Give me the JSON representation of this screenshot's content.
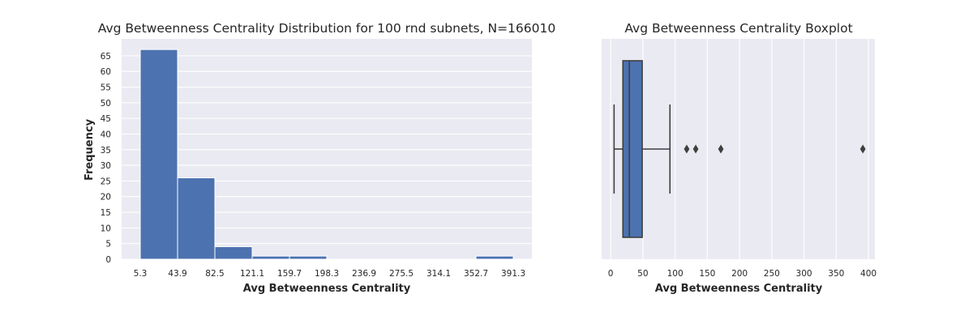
{
  "chart_data": [
    {
      "type": "bar",
      "title": "Avg Betweenness Centrality Distribution for 100 rnd subnets, N=166010",
      "xlabel": "Avg Betweenness Centrality",
      "ylabel": "Frequency",
      "bin_edges": [
        5.3,
        43.9,
        82.5,
        121.1,
        159.7,
        198.3,
        236.9,
        275.5,
        314.1,
        352.7,
        391.3
      ],
      "x_tick_labels": [
        "5.3",
        "43.9",
        "82.5",
        "121.1",
        "159.7",
        "198.3",
        "236.9",
        "275.5",
        "314.1",
        "352.7",
        "391.3"
      ],
      "values": [
        67,
        26,
        4,
        1,
        1,
        0,
        0,
        0,
        0,
        1
      ],
      "y_ticks": [
        0,
        5,
        10,
        15,
        20,
        25,
        30,
        35,
        40,
        45,
        50,
        55,
        60,
        65
      ],
      "ylim": [
        0,
        70.4
      ],
      "grid": true,
      "colors": {
        "bar": "#4c72b0",
        "bar_edge": "#ffffff",
        "background": "#eaeaf2",
        "grid": "#ffffff"
      }
    },
    {
      "type": "boxplot",
      "title": "Avg Betweenness Centrality Boxplot",
      "xlabel": "Avg Betweenness Centrality",
      "x_ticks": [
        0,
        50,
        100,
        150,
        200,
        250,
        300,
        350,
        400
      ],
      "xlim": [
        -14,
        410
      ],
      "stats": {
        "whisker_low": 5.3,
        "q1": 19,
        "median": 29,
        "q3": 49,
        "whisker_high": 92
      },
      "outliers": [
        118,
        132,
        171,
        391.3
      ],
      "grid": true,
      "colors": {
        "box": "#4c72b0",
        "line": "#3f3f3f",
        "background": "#eaeaf2",
        "grid": "#ffffff"
      }
    }
  ]
}
